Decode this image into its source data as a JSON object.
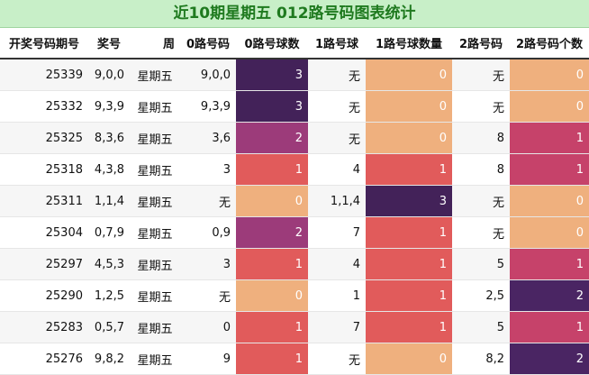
{
  "title": "近10期星期五 012路号码图表统计",
  "columns": [
    "开奖号码期号",
    "奖号",
    "周",
    "0路号码",
    "0路号球数",
    "1路号球",
    "1路号球数量",
    "2路号码",
    "2路号码个数"
  ],
  "colors": {
    "count_0": "#efb07e",
    "count_1": "#e15b5b",
    "count_1_alt": "#c6426a",
    "count_2": "#9c3b7a",
    "count_2_alt": "#4a2563",
    "count_3": "#432259"
  },
  "rows": [
    {
      "issue": "25339",
      "nums": "9,0,0",
      "week": "星期五",
      "r0": "9,0,0",
      "r0n": "3",
      "r1": "无",
      "r1n": "0",
      "r2": "无",
      "r2n": "0"
    },
    {
      "issue": "25332",
      "nums": "9,3,9",
      "week": "星期五",
      "r0": "9,3,9",
      "r0n": "3",
      "r1": "无",
      "r1n": "0",
      "r2": "无",
      "r2n": "0"
    },
    {
      "issue": "25325",
      "nums": "8,3,6",
      "week": "星期五",
      "r0": "3,6",
      "r0n": "2",
      "r1": "无",
      "r1n": "0",
      "r2": "8",
      "r2n": "1"
    },
    {
      "issue": "25318",
      "nums": "4,3,8",
      "week": "星期五",
      "r0": "3",
      "r0n": "1",
      "r1": "4",
      "r1n": "1",
      "r2": "8",
      "r2n": "1"
    },
    {
      "issue": "25311",
      "nums": "1,1,4",
      "week": "星期五",
      "r0": "无",
      "r0n": "0",
      "r1": "1,1,4",
      "r1n": "3",
      "r2": "无",
      "r2n": "0"
    },
    {
      "issue": "25304",
      "nums": "0,7,9",
      "week": "星期五",
      "r0": "0,9",
      "r0n": "2",
      "r1": "7",
      "r1n": "1",
      "r2": "无",
      "r2n": "0"
    },
    {
      "issue": "25297",
      "nums": "4,5,3",
      "week": "星期五",
      "r0": "3",
      "r0n": "1",
      "r1": "4",
      "r1n": "1",
      "r2": "5",
      "r2n": "1"
    },
    {
      "issue": "25290",
      "nums": "1,2,5",
      "week": "星期五",
      "r0": "无",
      "r0n": "0",
      "r1": "1",
      "r1n": "1",
      "r2": "2,5",
      "r2n": "2"
    },
    {
      "issue": "25283",
      "nums": "0,5,7",
      "week": "星期五",
      "r0": "0",
      "r0n": "1",
      "r1": "7",
      "r1n": "1",
      "r2": "5",
      "r2n": "1"
    },
    {
      "issue": "25276",
      "nums": "9,8,2",
      "week": "星期五",
      "r0": "9",
      "r0n": "1",
      "r1": "无",
      "r1n": "0",
      "r2": "8,2",
      "r2n": "2"
    }
  ]
}
